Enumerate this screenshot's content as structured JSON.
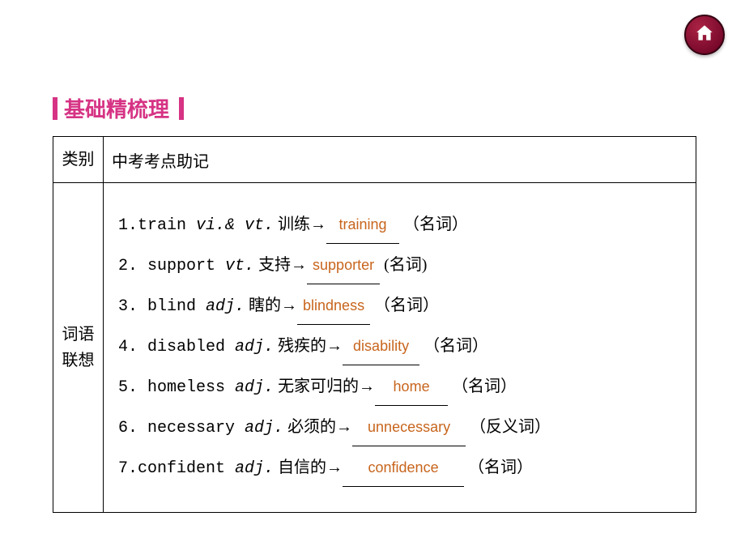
{
  "section_title": "基础精梳理",
  "colors": {
    "title_color": "#d63384",
    "answer_color": "#c8651d",
    "border_color": "#000000",
    "home_button_bg": "#660022"
  },
  "table": {
    "header": {
      "col1": "类别",
      "col2": "中考考点助记"
    },
    "row_label": "词语\n联想",
    "items": [
      {
        "num": "1.",
        "word": "train",
        "pos": "vi.& vt.",
        "meaning": "训练",
        "arrow": "→",
        "answer": "training",
        "suffix": "（名词）"
      },
      {
        "num": "2.",
        "word": " support",
        "pos": "vt.",
        "meaning": "支持",
        "arrow": "→",
        "answer": "supporter",
        "suffix": "(名词)"
      },
      {
        "num": "3.",
        "word": " blind",
        "pos": "adj.",
        "meaning": "瞎的",
        "arrow": "→",
        "answer": "blindness",
        "suffix": "（名词）"
      },
      {
        "num": "4.",
        "word": " disabled",
        "pos": "adj.",
        "meaning": "残疾的",
        "arrow": "→",
        "answer": "disability",
        "suffix": "（名词）"
      },
      {
        "num": "5.",
        "word": " homeless",
        "pos": "adj.",
        "meaning": "无家可归的",
        "arrow": "→",
        "answer": "home",
        "suffix": "（名词）"
      },
      {
        "num": "6.",
        "word": " necessary",
        "pos": "adj.",
        "meaning": "必须的",
        "arrow": "→",
        "answer": "unnecessary",
        "suffix": "（反义词）"
      },
      {
        "num": "7.",
        "word": "confident",
        "pos": "adj.",
        "meaning": "自信的",
        "arrow": "→",
        "answer": "confidence",
        "suffix": "（名词）"
      }
    ]
  }
}
